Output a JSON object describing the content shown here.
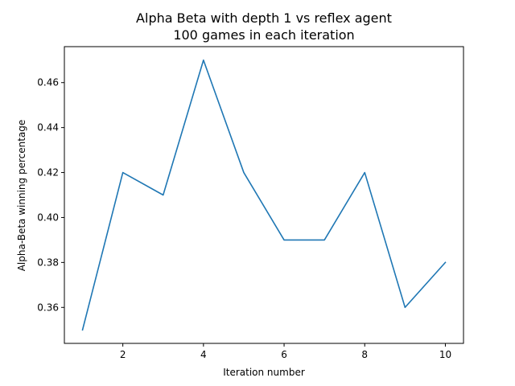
{
  "chart_data": {
    "type": "line",
    "title": "Alpha Beta with depth 1 vs reflex agent",
    "subtitle": "100 games in each iteration",
    "xlabel": "Iteration number",
    "ylabel": "Alpha-Beta winning percentage",
    "x": [
      1,
      2,
      3,
      4,
      5,
      6,
      7,
      8,
      9,
      10
    ],
    "series": [
      {
        "values": [
          0.35,
          0.42,
          0.41,
          0.47,
          0.42,
          0.39,
          0.39,
          0.42,
          0.36,
          0.38
        ]
      }
    ],
    "xlim": [
      0.55,
      10.45
    ],
    "ylim": [
      0.344,
      0.476
    ],
    "xticks": [
      2,
      4,
      6,
      8,
      10
    ],
    "xtick_labels": [
      "2",
      "4",
      "6",
      "8",
      "10"
    ],
    "yticks": [
      0.36,
      0.38,
      0.4,
      0.42,
      0.44,
      0.46
    ],
    "ytick_labels": [
      "0.36",
      "0.38",
      "0.40",
      "0.42",
      "0.44",
      "0.46"
    ],
    "line_color": "#1f77b4",
    "grid": false,
    "legend": "none"
  }
}
